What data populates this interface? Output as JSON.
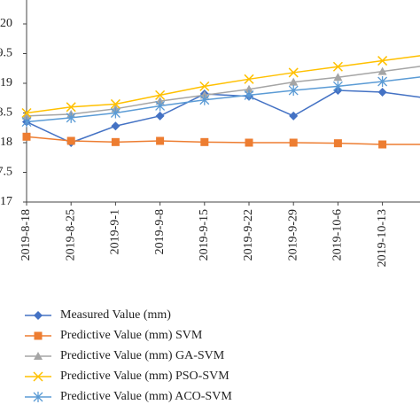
{
  "chart_data": {
    "type": "line",
    "categories": [
      "2019-8-18",
      "2019-8-25",
      "2019-9-1",
      "2019-9-8",
      "2019-9-15",
      "2019-9-22",
      "2019-9-29",
      "2019-10-6",
      "2019-10-13",
      null
    ],
    "series": [
      {
        "name": "Measured Value (mm)",
        "color": "#4472c4",
        "marker": "diamond",
        "values": [
          18.35,
          18.0,
          18.28,
          18.45,
          18.82,
          18.78,
          18.45,
          18.88,
          18.85,
          18.75
        ]
      },
      {
        "name": "Predictive Value (mm) SVM",
        "color": "#ed7d31",
        "marker": "square",
        "values": [
          18.1,
          18.03,
          18.01,
          18.03,
          18.01,
          18.0,
          18.0,
          17.99,
          17.97,
          17.97
        ]
      },
      {
        "name": "Predictive Value (mm) GA-SVM",
        "color": "#a5a5a5",
        "marker": "triangle",
        "values": [
          18.45,
          18.48,
          18.57,
          18.7,
          18.8,
          18.9,
          19.02,
          19.1,
          19.2,
          19.3
        ]
      },
      {
        "name": "Predictive Value (mm) PSO-SVM",
        "color": "#ffc000",
        "marker": "x",
        "values": [
          18.5,
          18.6,
          18.65,
          18.8,
          18.95,
          19.07,
          19.18,
          19.28,
          19.38,
          19.48
        ]
      },
      {
        "name": "Predictive Value (mm) ACO-SVM",
        "color": "#5b9bd5",
        "marker": "star",
        "values": [
          18.35,
          18.42,
          18.5,
          18.62,
          18.72,
          18.8,
          18.88,
          18.95,
          19.03,
          19.12
        ]
      }
    ],
    "ylim": [
      17,
      20
    ],
    "yticks": [
      17,
      17.5,
      18,
      18.5,
      19,
      19.5,
      20
    ],
    "legend": "bottom"
  }
}
